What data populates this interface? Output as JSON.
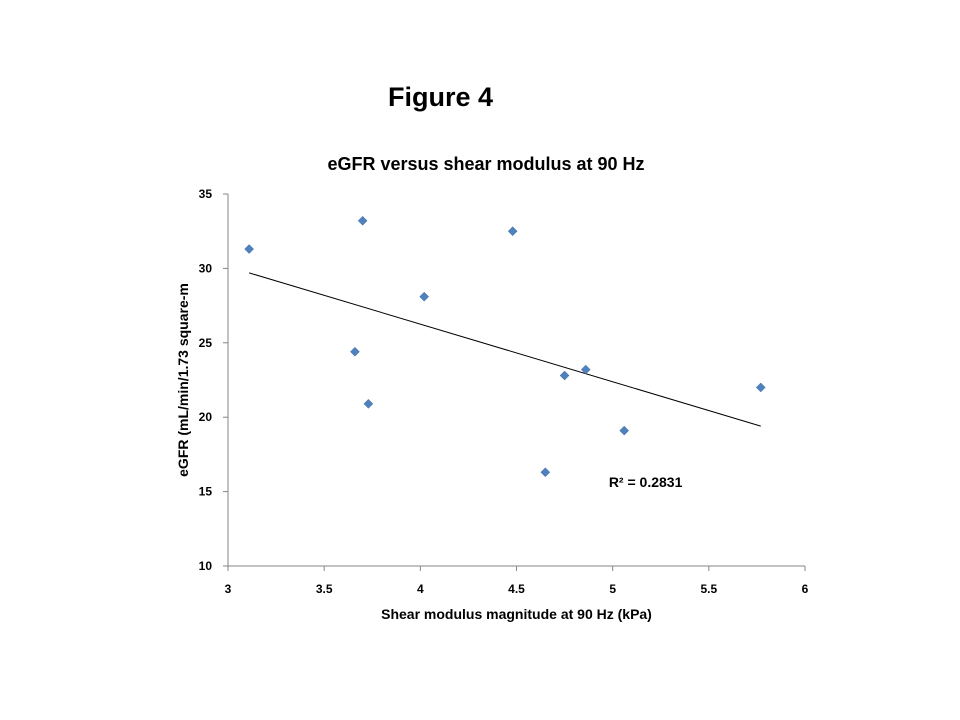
{
  "figure_label": "Figure 4",
  "chart_data": {
    "type": "scatter",
    "title": "eGFR versus shear modulus at 90 Hz",
    "xlabel": "Shear modulus magnitude at 90 Hz (kPa)",
    "ylabel": "eGFR (mL/min/1.73 square-m",
    "xlim": [
      3,
      6
    ],
    "ylim": [
      10,
      35
    ],
    "xticks": [
      3,
      3.5,
      4,
      4.5,
      5,
      5.5,
      6
    ],
    "xtick_labels": [
      "3",
      "3.5",
      "4",
      "4.5",
      "5",
      "5.5",
      "6"
    ],
    "yticks": [
      10,
      15,
      20,
      25,
      30,
      35
    ],
    "ytick_labels": [
      "10",
      "15",
      "20",
      "25",
      "30",
      "35"
    ],
    "grid": false,
    "points": [
      {
        "x": 3.11,
        "y": 31.3
      },
      {
        "x": 3.7,
        "y": 33.2
      },
      {
        "x": 3.66,
        "y": 24.4
      },
      {
        "x": 3.73,
        "y": 20.9
      },
      {
        "x": 4.02,
        "y": 28.1
      },
      {
        "x": 4.48,
        "y": 32.5
      },
      {
        "x": 4.65,
        "y": 16.3
      },
      {
        "x": 4.75,
        "y": 22.8
      },
      {
        "x": 4.86,
        "y": 23.2
      },
      {
        "x": 5.06,
        "y": 19.1
      },
      {
        "x": 5.77,
        "y": 22.0
      }
    ],
    "point_color": "#4F81BD",
    "trendline": {
      "x": [
        3.11,
        5.77
      ],
      "y": [
        29.7,
        19.4
      ],
      "color": "#000000"
    },
    "annotation": "R² = 0.2831",
    "annotation_at": {
      "x": 4.98,
      "y": 15.3
    }
  }
}
